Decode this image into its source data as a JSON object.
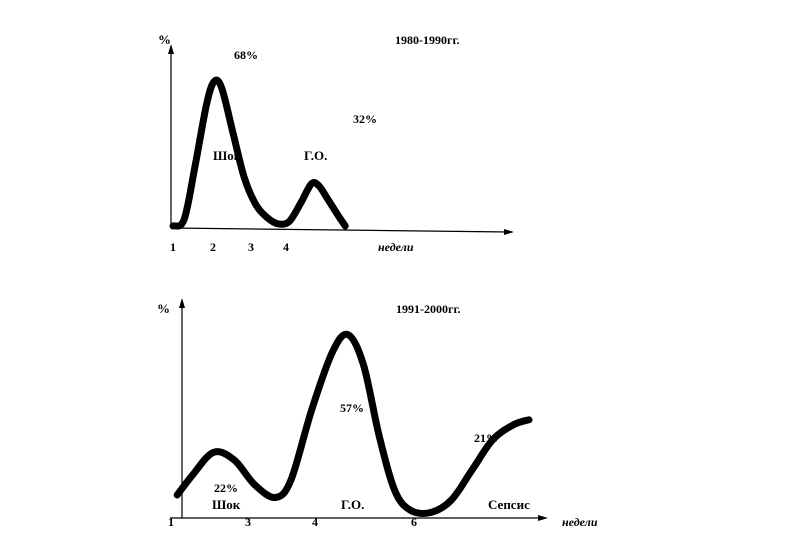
{
  "chart_data": [
    {
      "type": "line",
      "title": "1980-1990гг.",
      "ylabel": "%",
      "xlabel": "недели",
      "x_ticks": [
        "1",
        "2",
        "3",
        "4"
      ],
      "annotations": {
        "peak1_value": "68%",
        "peak2_value": "32%",
        "peak1_label": "Шок",
        "peak2_label": "Г.О."
      },
      "x": [
        1,
        1.3,
        1.6,
        1.9,
        2.1,
        2.3,
        2.6,
        2.9,
        3.2,
        3.5,
        3.8,
        4.1,
        4.4,
        4.7,
        4.9,
        5.1,
        5.4,
        5.6
      ],
      "y": [
        0,
        3,
        28,
        55,
        65,
        62,
        42,
        22,
        10,
        4,
        1,
        2,
        10,
        19,
        18,
        13,
        5,
        0
      ],
      "xlim": [
        1,
        10
      ],
      "ylim": [
        0,
        80
      ]
    },
    {
      "type": "line",
      "title": "1991-2000гг.",
      "ylabel": "%",
      "xlabel": "недели",
      "x_ticks": [
        "1",
        "3",
        "4",
        "6"
      ],
      "annotations": {
        "peak1_value": "22%",
        "peak2_value": "57%",
        "peak3_value": "21%",
        "peak1_label": "Шок",
        "peak2_label": "Г.О.",
        "peak3_label": "Сепсис"
      },
      "x": [
        1.1,
        1.4,
        1.8,
        2.2,
        2.6,
        3.0,
        3.3,
        3.7,
        4.1,
        4.4,
        4.7,
        5.0,
        5.3,
        5.6,
        6.0,
        6.4,
        6.8,
        7.2,
        7.6,
        7.9
      ],
      "y": [
        8,
        16,
        25,
        22,
        12,
        7,
        14,
        42,
        65,
        72,
        60,
        32,
        10,
        2,
        1,
        6,
        18,
        30,
        36,
        38
      ],
      "xlim": [
        1,
        8.5
      ],
      "ylim": [
        0,
        85
      ]
    }
  ]
}
